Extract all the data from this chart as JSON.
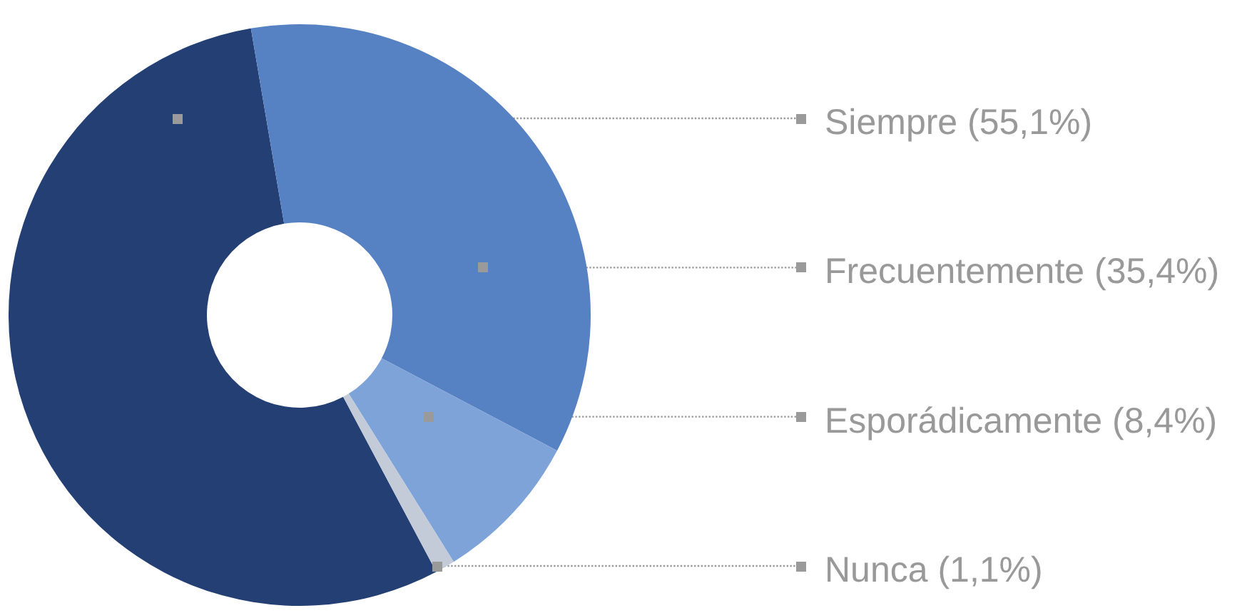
{
  "chart_data": {
    "type": "donut",
    "categories": [
      "Siempre",
      "Frecuentemente",
      "Esporádicamente",
      "Nunca"
    ],
    "values": [
      55.1,
      35.4,
      8.4,
      1.1
    ],
    "colors": [
      "#233f74",
      "#5682c4",
      "#7ea3d8",
      "#c3cbd9"
    ],
    "value_labels": [
      "(55,1%)",
      "(35,4%)",
      "(8,4%)",
      "(1,1%)"
    ]
  }
}
